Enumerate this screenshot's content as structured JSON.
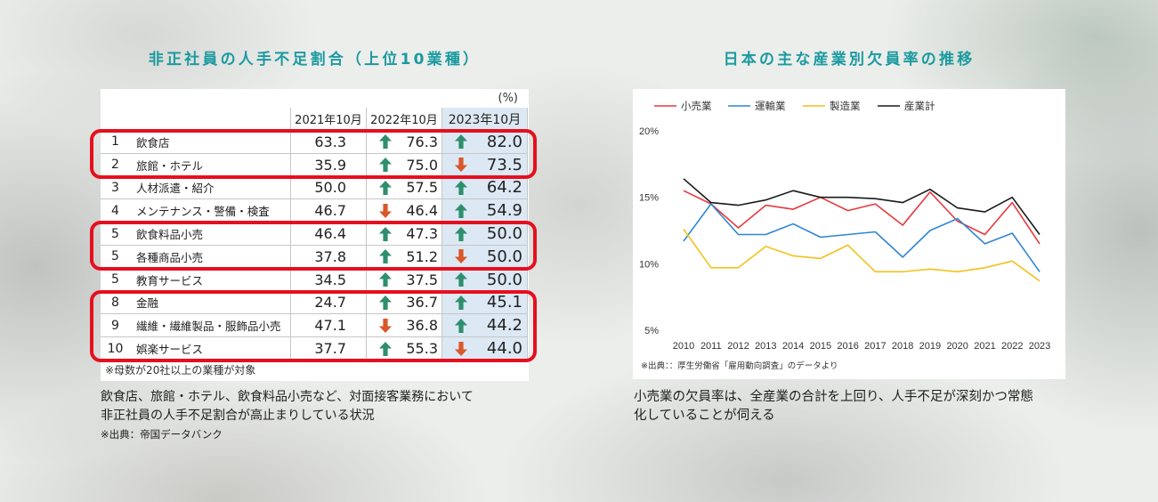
{
  "left": {
    "title": "非正社員の人手不足割合（上位10業種）",
    "table": {
      "unit": "(%)",
      "headers": [
        "2021年10月",
        "2022年10月",
        "2023年10月"
      ],
      "rows": [
        {
          "rank": "1",
          "name": "飲食店",
          "v2021": "63.3",
          "v2022": "76.3",
          "icon2022": "up-arrow",
          "v2023": "82.0",
          "icon2023": "up-arrow"
        },
        {
          "rank": "2",
          "name": "旅館・ホテル",
          "v2021": "35.9",
          "v2022": "75.0",
          "icon2022": "up-arrow",
          "v2023": "73.5",
          "icon2023": "down-arrow"
        },
        {
          "rank": "3",
          "name": "人材派遣・紹介",
          "v2021": "50.0",
          "v2022": "57.5",
          "icon2022": "up-arrow",
          "v2023": "64.2",
          "icon2023": "up-arrow"
        },
        {
          "rank": "4",
          "name": "メンテナンス・警備・検査",
          "v2021": "46.7",
          "v2022": "46.4",
          "icon2022": "down-arrow",
          "v2023": "54.9",
          "icon2023": "up-arrow"
        },
        {
          "rank": "5",
          "name": "飲食料品小売",
          "v2021": "46.4",
          "v2022": "47.3",
          "icon2022": "up-arrow",
          "v2023": "50.0",
          "icon2023": "up-arrow"
        },
        {
          "rank": "5",
          "name": "各種商品小売",
          "v2021": "37.8",
          "v2022": "51.2",
          "icon2022": "up-arrow",
          "v2023": "50.0",
          "icon2023": "down-arrow"
        },
        {
          "rank": "5",
          "name": "教育サービス",
          "v2021": "34.5",
          "v2022": "37.5",
          "icon2022": "up-arrow",
          "v2023": "50.0",
          "icon2023": "up-arrow"
        },
        {
          "rank": "8",
          "name": "金融",
          "v2021": "24.7",
          "v2022": "36.7",
          "icon2022": "up-arrow",
          "v2023": "45.1",
          "icon2023": "up-arrow"
        },
        {
          "rank": "9",
          "name": "繊維・繊維製品・服飾品小売",
          "v2021": "47.1",
          "v2022": "36.8",
          "icon2022": "down-arrow",
          "v2023": "44.2",
          "icon2023": "up-arrow"
        },
        {
          "rank": "10",
          "name": "娯楽サービス",
          "v2021": "37.7",
          "v2022": "55.3",
          "icon2022": "up-arrow",
          "v2023": "44.0",
          "icon2023": "down-arrow"
        }
      ],
      "highlighted_row_groups": [
        [
          0,
          1
        ],
        [
          4,
          5
        ],
        [
          7,
          8,
          9
        ]
      ],
      "note": "※母数が20社以上の業種が対象"
    },
    "caption": [
      "飲食店、旅館・ホテル、飲食料品小売など、対面接客業務において",
      "非正社員の人手不足割合が高止まりしている状況"
    ],
    "source": "※出典：帝国データバンク"
  },
  "right": {
    "title": "日本の主な産業別欠員率の推移",
    "source": "※出典：：厚生労働省「雇用動向調査」のデータより",
    "caption": [
      "小売業の欠員率は、全産業の合計を上回り、人手不足が深刻かつ常態",
      "化していることが伺える"
    ]
  },
  "colors": {
    "title": "#1b9aa0",
    "highlight_border": "#e60f1e",
    "highlight_column": "#dce8f4",
    "up_arrow": "#2f8f6d",
    "down_arrow": "#d9572a"
  },
  "chart_data": {
    "type": "line",
    "x": [
      "2010",
      "2011",
      "2012",
      "2013",
      "2014",
      "2015",
      "2016",
      "2017",
      "2018",
      "2019",
      "2020",
      "2021",
      "2022",
      "2023"
    ],
    "ylim": [
      5,
      20
    ],
    "yticks": [
      5,
      10,
      15,
      20
    ],
    "ytick_labels": [
      "5%",
      "10%",
      "15%",
      "20%"
    ],
    "grid": false,
    "legend": "top-left",
    "series": [
      {
        "name": "小売業",
        "color": "#e8383d",
        "values": [
          15.5,
          14.5,
          12.7,
          14.4,
          14.1,
          15.0,
          14.0,
          14.5,
          12.9,
          15.4,
          13.2,
          12.2,
          14.6,
          11.5
        ]
      },
      {
        "name": "運輸業",
        "color": "#2f86d4",
        "values": [
          11.7,
          14.5,
          12.2,
          12.2,
          13.0,
          12.0,
          12.2,
          12.4,
          10.5,
          12.5,
          13.4,
          11.5,
          12.3,
          9.4
        ]
      },
      {
        "name": "製造業",
        "color": "#f2c21b",
        "values": [
          12.6,
          9.7,
          9.7,
          11.3,
          10.6,
          10.4,
          11.4,
          9.4,
          9.4,
          9.6,
          9.4,
          9.7,
          10.2,
          8.7
        ]
      },
      {
        "name": "産業計",
        "color": "#1a1a1a",
        "values": [
          16.4,
          14.6,
          14.4,
          14.8,
          15.5,
          15.0,
          15.0,
          14.9,
          14.6,
          15.6,
          14.2,
          13.9,
          15.0,
          12.2
        ]
      }
    ]
  }
}
